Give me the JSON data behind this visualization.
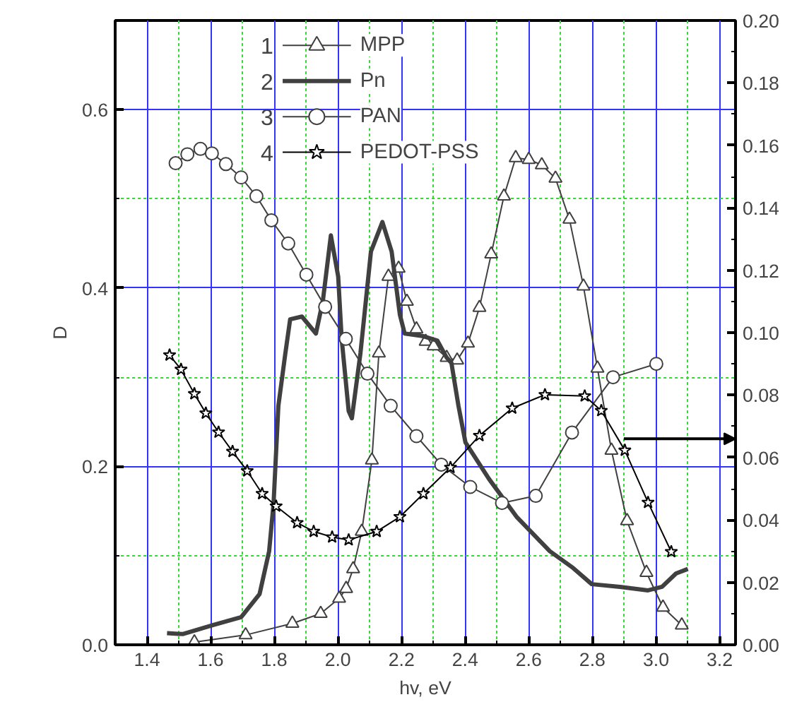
{
  "chart_data": {
    "type": "line",
    "xlabel": "hv, eV",
    "ylabel": "D",
    "xlim": [
      1.3,
      3.25
    ],
    "ylim": [
      0,
      0.7
    ],
    "y2lim": [
      0,
      0.2
    ],
    "xticks": [
      {
        "value": 1.4,
        "label": "1.4"
      },
      {
        "value": 1.5,
        "label": null
      },
      {
        "value": 1.6,
        "label": "1.6"
      },
      {
        "value": 1.7,
        "label": null
      },
      {
        "value": 1.8,
        "label": "1.8"
      },
      {
        "value": 1.9,
        "label": null
      },
      {
        "value": 2.0,
        "label": "2.0"
      },
      {
        "value": 2.1,
        "label": null
      },
      {
        "value": 2.2,
        "label": "2.2"
      },
      {
        "value": 2.3,
        "label": null
      },
      {
        "value": 2.4,
        "label": "2.4"
      },
      {
        "value": 2.5,
        "label": null
      },
      {
        "value": 2.6,
        "label": "2.6"
      },
      {
        "value": 2.7,
        "label": null
      },
      {
        "value": 2.8,
        "label": "2.8"
      },
      {
        "value": 2.9,
        "label": null
      },
      {
        "value": 3.0,
        "label": "3.0"
      },
      {
        "value": 3.1,
        "label": null
      },
      {
        "value": 3.2,
        "label": "3.2"
      }
    ],
    "yticks": [
      {
        "value": 0,
        "label": "0.0"
      },
      {
        "value": 0.1,
        "label": null
      },
      {
        "value": 0.2,
        "label": "0.2"
      },
      {
        "value": 0.3,
        "label": null
      },
      {
        "value": 0.4,
        "label": "0.4"
      },
      {
        "value": 0.5,
        "label": null
      },
      {
        "value": 0.6,
        "label": "0.6"
      }
    ],
    "y2ticks": [
      {
        "value": 0,
        "label": "0.00"
      },
      {
        "value": 0.01,
        "label": null
      },
      {
        "value": 0.02,
        "label": "0.02"
      },
      {
        "value": 0.03,
        "label": null
      },
      {
        "value": 0.04,
        "label": "0.04"
      },
      {
        "value": 0.05,
        "label": null
      },
      {
        "value": 0.06,
        "label": "0.06"
      },
      {
        "value": 0.07,
        "label": null
      },
      {
        "value": 0.08,
        "label": "0.08"
      },
      {
        "value": 0.09,
        "label": null
      },
      {
        "value": 0.1,
        "label": "0.10"
      },
      {
        "value": 0.11,
        "label": null
      },
      {
        "value": 0.12,
        "label": "0.12"
      },
      {
        "value": 0.13,
        "label": null
      },
      {
        "value": 0.14,
        "label": "0.14"
      },
      {
        "value": 0.15,
        "label": null
      },
      {
        "value": 0.16,
        "label": "0.16"
      },
      {
        "value": 0.17,
        "label": null
      },
      {
        "value": 0.18,
        "label": "0.18"
      },
      {
        "value": 0.19,
        "label": null
      },
      {
        "value": 0.2,
        "label": "0.20"
      }
    ],
    "grid": true,
    "legend": "top",
    "line_style": "solid",
    "annotations": [
      "1",
      "2",
      "3",
      "4"
    ],
    "series": [
      {
        "name": "MPP",
        "color": "#404040",
        "marker": "triangle",
        "x": [
          1.549,
          1.71,
          1.857,
          1.946,
          2.004,
          2.026,
          2.048,
          2.075,
          2.107,
          2.129,
          2.159,
          2.191,
          2.217,
          2.247,
          2.276,
          2.301,
          2.342,
          2.375,
          2.409,
          2.445,
          2.482,
          2.522,
          2.559,
          2.6,
          2.641,
          2.684,
          2.728,
          2.772,
          2.816,
          2.86,
          2.909,
          2.97,
          3.022,
          3.081
        ],
        "values": [
          0.003,
          0.011,
          0.024,
          0.035,
          0.052,
          0.063,
          0.085,
          0.127,
          0.207,
          0.327,
          0.413,
          0.422,
          0.385,
          0.354,
          0.34,
          0.335,
          0.322,
          0.319,
          0.338,
          0.378,
          0.438,
          0.503,
          0.546,
          0.544,
          0.538,
          0.523,
          0.477,
          0.402,
          0.31,
          0.218,
          0.139,
          0.081,
          0.042,
          0.022
        ]
      },
      {
        "name": "Pn",
        "color": "#404040",
        "marker": "none",
        "x": [
          1.463,
          1.512,
          1.607,
          1.696,
          1.754,
          1.784,
          1.798,
          1.813,
          1.835,
          1.85,
          1.887,
          1.931,
          1.953,
          1.978,
          2.001,
          2.012,
          2.034,
          2.044,
          2.071,
          2.104,
          2.14,
          2.169,
          2.195,
          2.21,
          2.269,
          2.313,
          2.342,
          2.357,
          2.379,
          2.401,
          2.475,
          2.563,
          2.666,
          2.74,
          2.798,
          2.887,
          2.975,
          3.019,
          3.063,
          3.1
        ],
        "values": [
          0.013,
          0.012,
          0.022,
          0.031,
          0.057,
          0.105,
          0.159,
          0.268,
          0.327,
          0.365,
          0.368,
          0.349,
          0.386,
          0.459,
          0.413,
          0.343,
          0.262,
          0.254,
          0.327,
          0.441,
          0.474,
          0.441,
          0.37,
          0.349,
          0.346,
          0.341,
          0.322,
          0.316,
          0.268,
          0.227,
          0.186,
          0.143,
          0.105,
          0.086,
          0.068,
          0.065,
          0.061,
          0.065,
          0.08,
          0.085
        ]
      },
      {
        "name": "PAN",
        "color": "#404040",
        "marker": "circle",
        "x": [
          1.49,
          1.527,
          1.568,
          1.604,
          1.648,
          1.696,
          1.744,
          1.791,
          1.844,
          1.901,
          1.96,
          2.025,
          2.093,
          2.166,
          2.247,
          2.325,
          2.416,
          2.516,
          2.622,
          2.736,
          2.865,
          3.001
        ],
        "values": [
          0.54,
          0.55,
          0.556,
          0.551,
          0.539,
          0.524,
          0.503,
          0.476,
          0.45,
          0.415,
          0.379,
          0.343,
          0.304,
          0.268,
          0.234,
          0.202,
          0.177,
          0.159,
          0.167,
          0.238,
          0.3,
          0.315
        ]
      },
      {
        "name": "PEDOT-PSS",
        "color": "#000000",
        "marker": "star",
        "axis": "y2",
        "x": [
          1.471,
          1.507,
          1.549,
          1.585,
          1.625,
          1.669,
          1.715,
          1.762,
          1.806,
          1.872,
          1.924,
          1.982,
          2.034,
          2.122,
          2.195,
          2.269,
          2.354,
          2.445,
          2.548,
          2.651,
          2.776,
          2.828,
          2.902,
          2.975,
          3.048
        ],
        "values": [
          0.0928,
          0.0882,
          0.0804,
          0.0742,
          0.0681,
          0.0619,
          0.0557,
          0.0484,
          0.0444,
          0.0391,
          0.0363,
          0.0345,
          0.0336,
          0.0363,
          0.041,
          0.0484,
          0.0568,
          0.067,
          0.0758,
          0.0801,
          0.0797,
          0.075,
          0.0623,
          0.0456,
          0.0298
        ]
      }
    ]
  }
}
